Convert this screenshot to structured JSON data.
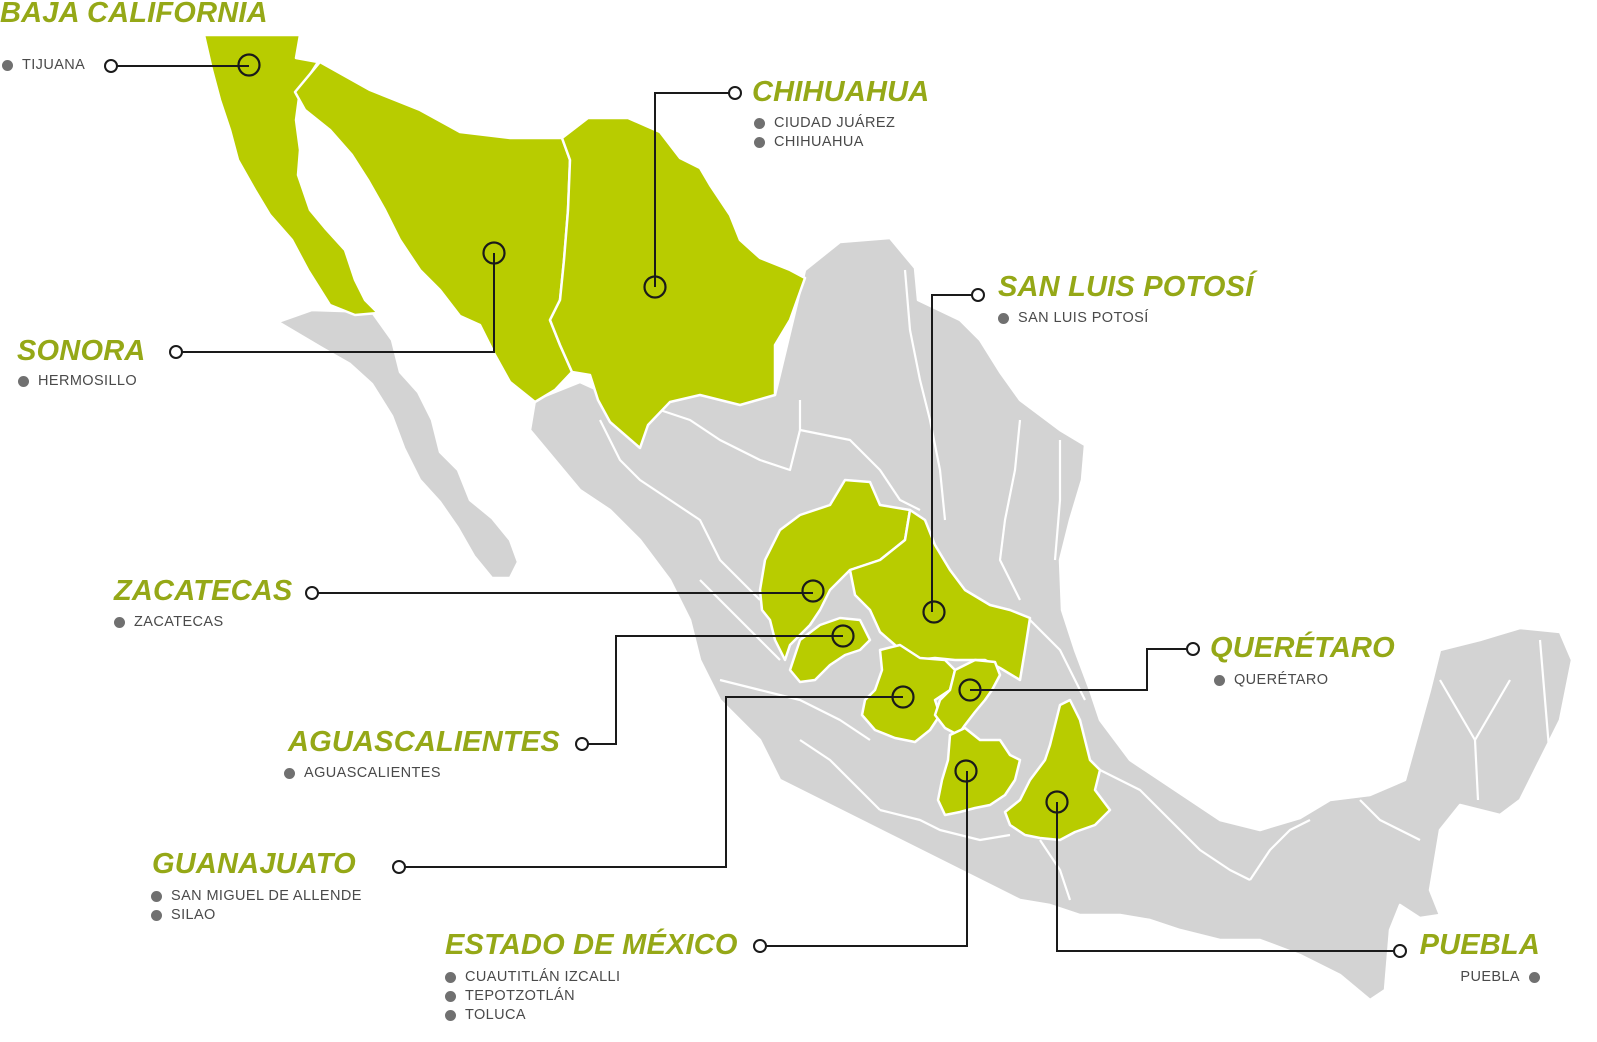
{
  "colors": {
    "highlight": "#b8cc00",
    "title": "#95a817",
    "land": "#d3d3d3",
    "border": "#ffffff",
    "line": "#1a1a1a",
    "city_text": "#4a4a4a",
    "city_dot": "#707070"
  },
  "states": [
    {
      "id": "baja-california",
      "name": "BAJA CALIFORNIA",
      "cities": [
        "TIJUANA"
      ]
    },
    {
      "id": "chihuahua",
      "name": "CHIHUAHUA",
      "cities": [
        "CIUDAD JUÁREZ",
        "CHIHUAHUA"
      ]
    },
    {
      "id": "san-luis-potosi",
      "name": "SAN LUIS POTOSÍ",
      "cities": [
        "SAN LUIS POTOSÍ"
      ]
    },
    {
      "id": "sonora",
      "name": "SONORA",
      "cities": [
        "HERMOSILLO"
      ]
    },
    {
      "id": "zacatecas",
      "name": "ZACATECAS",
      "cities": [
        "ZACATECAS"
      ]
    },
    {
      "id": "queretaro",
      "name": "QUERÉTARO",
      "cities": [
        "QUERÉTARO"
      ]
    },
    {
      "id": "aguascalientes",
      "name": "AGUASCALIENTES",
      "cities": [
        "AGUASCALIENTES"
      ]
    },
    {
      "id": "guanajuato",
      "name": "GUANAJUATO",
      "cities": [
        "SAN MIGUEL DE ALLENDE",
        "SILAO"
      ]
    },
    {
      "id": "estado-de-mexico",
      "name": "ESTADO DE MÉXICO",
      "cities": [
        "CUAUTITLÁN IZCALLI",
        "TEPOTZOTLÁN",
        "TOLUCA"
      ]
    },
    {
      "id": "puebla",
      "name": "PUEBLA",
      "cities": [
        "PUEBLA"
      ]
    }
  ]
}
